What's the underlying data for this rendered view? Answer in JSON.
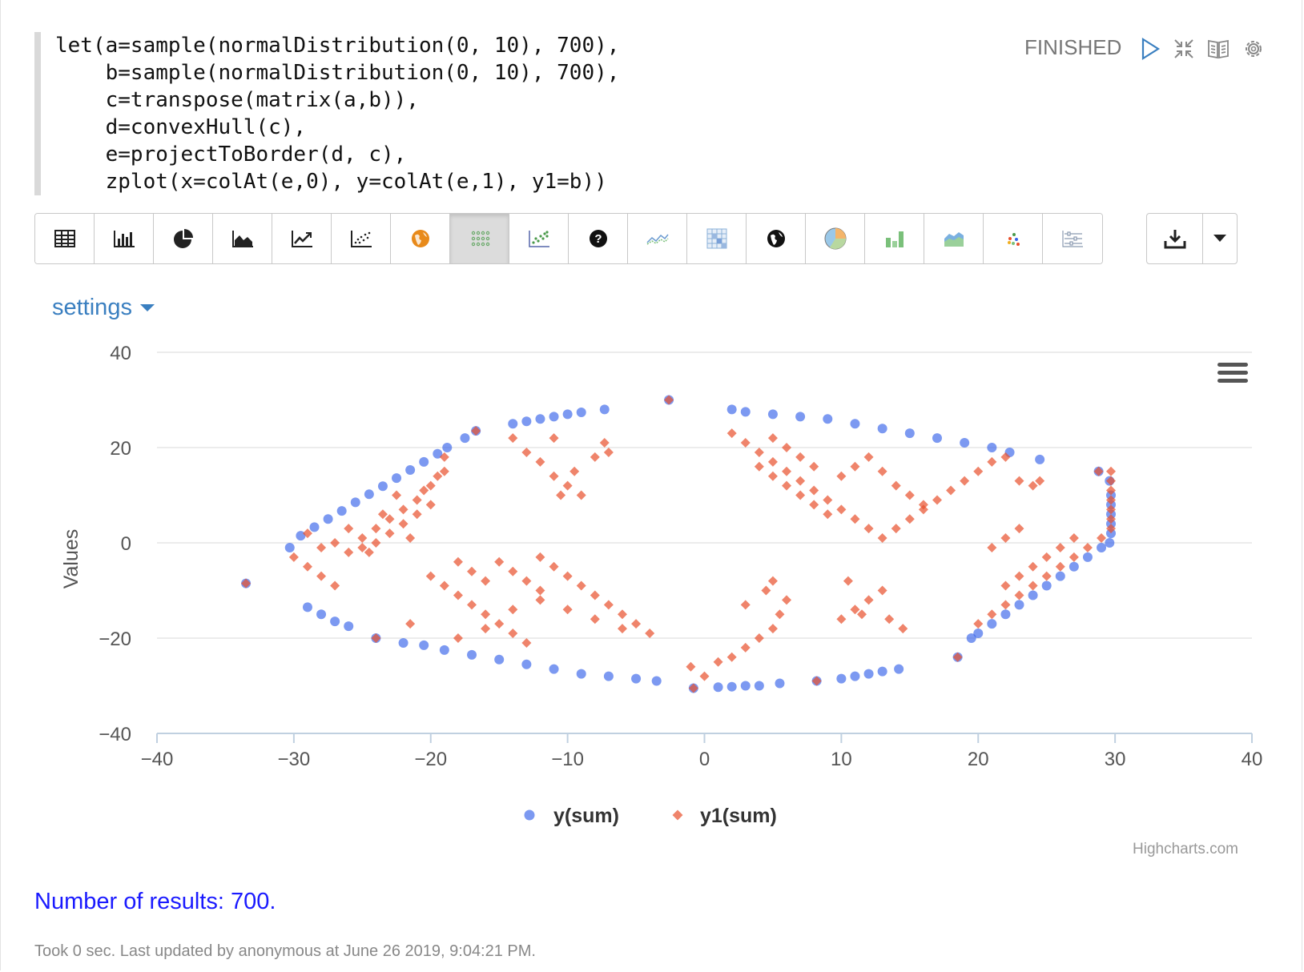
{
  "editor": {
    "lines": [
      "let(a=sample(normalDistribution(0, 10), 700),",
      "    b=sample(normalDistribution(0, 10), 700),",
      "    c=transpose(matrix(a,b)),",
      "    d=convexHull(c),",
      "    e=projectToBorder(d, c),",
      "    zplot(x=colAt(e,0), y=colAt(e,1), y1=b))"
    ]
  },
  "status": "FINISHED",
  "controls": [
    "run-icon",
    "collapse-icon",
    "book-icon",
    "gear-icon"
  ],
  "toolbar": {
    "buttons": [
      "table-icon",
      "bar-chart-icon",
      "pie-chart-icon",
      "area-chart-icon",
      "line-chart-icon",
      "scatter-chart-icon",
      "globe-orange-icon",
      "bubble-grid-icon",
      "scatter-dots-icon",
      "help-icon",
      "line-multi-icon",
      "heatmap-icon",
      "globe-icon",
      "pie-color-icon",
      "bar-color-icon",
      "area-color-icon",
      "scatter-color-icon",
      "slider-icon"
    ],
    "active_index": 7
  },
  "download": {
    "icon": "download-icon",
    "caret": "caret-down-icon"
  },
  "settings_label": "settings",
  "chart_data": {
    "type": "scatter",
    "ylabel": "Values",
    "xlim": [
      -40,
      40
    ],
    "ylim": [
      -40,
      40
    ],
    "x_ticks": [
      "−40",
      "−30",
      "−20",
      "−10",
      "0",
      "10",
      "20",
      "30",
      "40"
    ],
    "y_ticks": [
      "40",
      "20",
      "0",
      "−20",
      "−40"
    ],
    "grid": true,
    "legend_position": "bottom-center",
    "series": [
      {
        "name": "y(sum)",
        "color": "#3563e9",
        "marker": "circle",
        "points": [
          [
            -33.5,
            -8.5
          ],
          [
            -30.3,
            -1
          ],
          [
            -29.5,
            1.5
          ],
          [
            -28.5,
            3.3
          ],
          [
            -27.5,
            5
          ],
          [
            -26.5,
            6.7
          ],
          [
            -25.5,
            8.5
          ],
          [
            -24.5,
            10.2
          ],
          [
            -23.5,
            11.9
          ],
          [
            -22.5,
            13.6
          ],
          [
            -21.5,
            15.3
          ],
          [
            -20.5,
            17
          ],
          [
            -19.5,
            18.7
          ],
          [
            -18.8,
            20
          ],
          [
            -17.5,
            22
          ],
          [
            -16.7,
            23.5
          ],
          [
            -14,
            25
          ],
          [
            -13,
            25.5
          ],
          [
            -12,
            26
          ],
          [
            -11,
            26.5
          ],
          [
            -10,
            27
          ],
          [
            -9,
            27.4
          ],
          [
            -7.3,
            28
          ],
          [
            -2.6,
            30
          ],
          [
            2,
            28
          ],
          [
            3,
            27.5
          ],
          [
            5,
            27
          ],
          [
            7,
            26.5
          ],
          [
            9,
            26
          ],
          [
            11,
            25
          ],
          [
            13,
            24
          ],
          [
            15,
            23
          ],
          [
            17,
            22
          ],
          [
            19,
            21
          ],
          [
            21,
            20
          ],
          [
            22.3,
            19
          ],
          [
            24.5,
            17.5
          ],
          [
            28.8,
            15
          ],
          [
            29.6,
            13
          ],
          [
            29.7,
            10
          ],
          [
            29.7,
            8
          ],
          [
            29.7,
            6
          ],
          [
            29.7,
            4
          ],
          [
            29.7,
            2
          ],
          [
            29.6,
            0
          ],
          [
            29,
            -1
          ],
          [
            28,
            -3
          ],
          [
            27,
            -5
          ],
          [
            26,
            -7
          ],
          [
            25,
            -9
          ],
          [
            24,
            -11
          ],
          [
            23,
            -13
          ],
          [
            22,
            -15
          ],
          [
            21,
            -17
          ],
          [
            20,
            -19
          ],
          [
            19.5,
            -20
          ],
          [
            18.5,
            -24
          ],
          [
            14.2,
            -26.5
          ],
          [
            13,
            -27
          ],
          [
            12,
            -27.5
          ],
          [
            11,
            -28
          ],
          [
            10,
            -28.5
          ],
          [
            8.2,
            -29
          ],
          [
            5.5,
            -29.5
          ],
          [
            4,
            -30
          ],
          [
            3,
            -30
          ],
          [
            2,
            -30.2
          ],
          [
            1,
            -30.3
          ],
          [
            -0.8,
            -30.5
          ],
          [
            -3.5,
            -29
          ],
          [
            -5,
            -28.5
          ],
          [
            -7,
            -28
          ],
          [
            -9,
            -27.5
          ],
          [
            -11,
            -26.5
          ],
          [
            -13,
            -25.5
          ],
          [
            -15,
            -24.5
          ],
          [
            -17,
            -23.5
          ],
          [
            -19,
            -22.5
          ],
          [
            -20.5,
            -21.5
          ],
          [
            -22,
            -21
          ],
          [
            -24,
            -20
          ],
          [
            -26,
            -17.5
          ],
          [
            -27,
            -16.5
          ],
          [
            -28,
            -15
          ],
          [
            -29,
            -13.5
          ]
        ]
      },
      {
        "name": "y1(sum)",
        "color": "#e8502c",
        "marker": "diamond",
        "points": [
          [
            -33.5,
            -8.5
          ],
          [
            -30,
            -3
          ],
          [
            -29,
            -5
          ],
          [
            -28,
            -7
          ],
          [
            -27,
            -9
          ],
          [
            -29,
            2
          ],
          [
            -28,
            -1
          ],
          [
            -27,
            0
          ],
          [
            -26,
            -2
          ],
          [
            -25,
            1
          ],
          [
            -24,
            3
          ],
          [
            -23,
            5
          ],
          [
            -22,
            7
          ],
          [
            -21,
            9
          ],
          [
            -20,
            12
          ],
          [
            -19,
            15
          ],
          [
            -26,
            3
          ],
          [
            -25,
            -1
          ],
          [
            -24,
            0
          ],
          [
            -23,
            2
          ],
          [
            -22,
            4
          ],
          [
            -21,
            6
          ],
          [
            -20,
            8
          ],
          [
            -24.5,
            -2
          ],
          [
            -23.5,
            6
          ],
          [
            -22.5,
            10
          ],
          [
            -21.5,
            1
          ],
          [
            -20.5,
            11
          ],
          [
            -19.5,
            14
          ],
          [
            -19,
            18
          ],
          [
            -16.7,
            23.5
          ],
          [
            -14,
            22
          ],
          [
            -13,
            19
          ],
          [
            -12,
            17
          ],
          [
            -11,
            14
          ],
          [
            -10,
            12
          ],
          [
            -9,
            10
          ],
          [
            -8,
            18
          ],
          [
            -7.3,
            21
          ],
          [
            -11,
            22
          ],
          [
            -10.5,
            10
          ],
          [
            -9.5,
            15
          ],
          [
            -7,
            19
          ],
          [
            -2.6,
            30
          ],
          [
            -20,
            -7
          ],
          [
            -19,
            -9
          ],
          [
            -18,
            -11
          ],
          [
            -17,
            -13
          ],
          [
            -16,
            -15
          ],
          [
            -15,
            -17
          ],
          [
            -14,
            -19
          ],
          [
            -13,
            -21
          ],
          [
            -12,
            -3
          ],
          [
            -11,
            -5
          ],
          [
            -10,
            -7
          ],
          [
            -9,
            -9
          ],
          [
            -8,
            -11
          ],
          [
            -7,
            -13
          ],
          [
            -6,
            -15
          ],
          [
            -5,
            -17
          ],
          [
            -4,
            -19
          ],
          [
            -15,
            -4
          ],
          [
            -14,
            -6
          ],
          [
            -13,
            -8
          ],
          [
            -12,
            -10
          ],
          [
            -16,
            -8
          ],
          [
            -17,
            -6
          ],
          [
            -18,
            -4
          ],
          [
            -10,
            -14
          ],
          [
            -8,
            -16
          ],
          [
            -6,
            -18
          ],
          [
            -12,
            -12
          ],
          [
            -14,
            -14
          ],
          [
            -16,
            -18
          ],
          [
            -18,
            -20
          ],
          [
            -21.5,
            -17
          ],
          [
            -24,
            -20
          ],
          [
            -1,
            -26
          ],
          [
            0,
            -28
          ],
          [
            1,
            -25
          ],
          [
            2,
            -24
          ],
          [
            3,
            -22
          ],
          [
            4,
            -20
          ],
          [
            5,
            -18
          ],
          [
            5.5,
            -15
          ],
          [
            6,
            -12
          ],
          [
            4.5,
            -10
          ],
          [
            5,
            -8
          ],
          [
            3,
            -13
          ],
          [
            -0.8,
            -30.5
          ],
          [
            8.2,
            -29
          ],
          [
            10,
            -16
          ],
          [
            11,
            -14
          ],
          [
            12,
            -12
          ],
          [
            13,
            -10
          ],
          [
            10.5,
            -8
          ],
          [
            11.5,
            -15
          ],
          [
            13.5,
            -16
          ],
          [
            14.5,
            -18
          ],
          [
            18.5,
            -24
          ],
          [
            2,
            23
          ],
          [
            3,
            21
          ],
          [
            4,
            19
          ],
          [
            5,
            17
          ],
          [
            6,
            15
          ],
          [
            7,
            13
          ],
          [
            8,
            11
          ],
          [
            9,
            9
          ],
          [
            10,
            7
          ],
          [
            11,
            5
          ],
          [
            12,
            3
          ],
          [
            13,
            1
          ],
          [
            14,
            3
          ],
          [
            15,
            5
          ],
          [
            16,
            7
          ],
          [
            17,
            9
          ],
          [
            18,
            11
          ],
          [
            19,
            13
          ],
          [
            20,
            15
          ],
          [
            21,
            17
          ],
          [
            22,
            18
          ],
          [
            23,
            13
          ],
          [
            24,
            12
          ],
          [
            10,
            14
          ],
          [
            11,
            16
          ],
          [
            12,
            18
          ],
          [
            13,
            15
          ],
          [
            14,
            12
          ],
          [
            15,
            10
          ],
          [
            16,
            8
          ],
          [
            8,
            16
          ],
          [
            7,
            18
          ],
          [
            6,
            20
          ],
          [
            5,
            22
          ],
          [
            4,
            16
          ],
          [
            5,
            14
          ],
          [
            6,
            12
          ],
          [
            7,
            10
          ],
          [
            8,
            8
          ],
          [
            9,
            6
          ],
          [
            20,
            -17
          ],
          [
            21,
            -15
          ],
          [
            22,
            -13
          ],
          [
            23,
            -11
          ],
          [
            24,
            -9
          ],
          [
            25,
            -7
          ],
          [
            26,
            -5
          ],
          [
            27,
            -3
          ],
          [
            28,
            -1
          ],
          [
            29,
            1
          ],
          [
            29.7,
            3
          ],
          [
            29.7,
            5
          ],
          [
            29.7,
            7
          ],
          [
            29.7,
            9
          ],
          [
            29.7,
            11
          ],
          [
            29.7,
            13
          ],
          [
            29.7,
            15
          ],
          [
            28.8,
            15
          ],
          [
            22,
            -9
          ],
          [
            23,
            -7
          ],
          [
            24,
            -5
          ],
          [
            25,
            -3
          ],
          [
            26,
            -1
          ],
          [
            27,
            1
          ],
          [
            24.5,
            13
          ],
          [
            23,
            3
          ],
          [
            22,
            1
          ],
          [
            21,
            -1
          ]
        ]
      }
    ]
  },
  "credits": "Highcharts.com",
  "results_text": "Number of results: 700.",
  "footer_text": "Took 0 sec. Last updated by anonymous at June 26 2019, 9:04:21 PM."
}
